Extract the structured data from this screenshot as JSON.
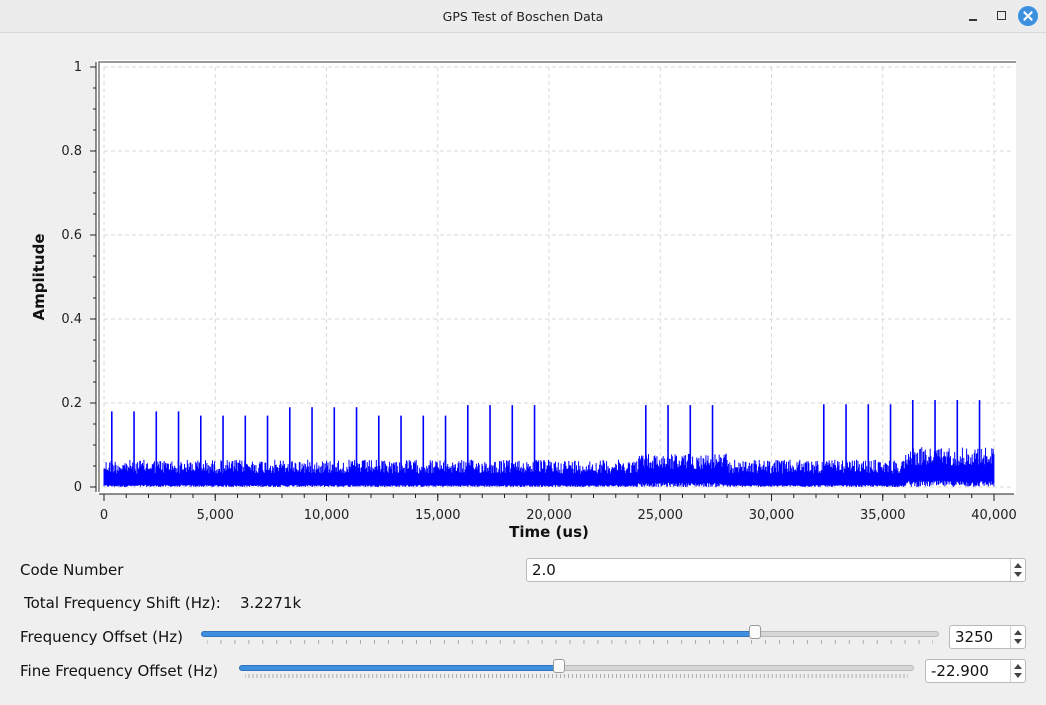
{
  "window": {
    "title": "GPS Test of Boschen Data"
  },
  "chart_data": {
    "type": "line",
    "xlabel": "Time (us)",
    "ylabel": "Amplitude",
    "xlim": [
      0,
      40000
    ],
    "ylim": [
      0,
      1
    ],
    "x_ticks": [
      0,
      5000,
      10000,
      15000,
      20000,
      25000,
      30000,
      35000,
      40000
    ],
    "x_tick_labels": [
      "0",
      "5,000",
      "10,000",
      "15,000",
      "20,000",
      "25,000",
      "30,000",
      "35,000",
      "40,000"
    ],
    "y_ticks": [
      0,
      0.2,
      0.4,
      0.6,
      0.8,
      1
    ],
    "y_tick_labels": [
      "0",
      "0.2",
      "0.4",
      "0.6",
      "0.8",
      "1"
    ],
    "grid": true,
    "line_color": "#0000ff",
    "noise_floor_segments": [
      {
        "x_start": 0,
        "x_end": 24000,
        "low": 0.005,
        "high": 0.065
      },
      {
        "x_start": 24000,
        "x_end": 28000,
        "low": 0.01,
        "high": 0.08
      },
      {
        "x_start": 28000,
        "x_end": 36000,
        "low": 0.005,
        "high": 0.065
      },
      {
        "x_start": 36000,
        "x_end": 40000,
        "low": 0.015,
        "high": 0.095
      }
    ],
    "peaks": {
      "x": [
        350,
        1350,
        2350,
        3350,
        4350,
        5350,
        6350,
        7350,
        8350,
        9350,
        10350,
        11350,
        12350,
        13350,
        14350,
        15350,
        16350,
        17350,
        18350,
        19350,
        24350,
        25350,
        26350,
        27350,
        32350,
        33350,
        34350,
        35350,
        36350,
        37350,
        38350,
        39350
      ],
      "y": [
        0.18,
        0.18,
        0.18,
        0.18,
        0.17,
        0.17,
        0.17,
        0.17,
        0.19,
        0.19,
        0.19,
        0.19,
        0.17,
        0.17,
        0.17,
        0.17,
        0.195,
        0.195,
        0.195,
        0.195,
        0.195,
        0.195,
        0.195,
        0.195,
        0.197,
        0.197,
        0.197,
        0.197,
        0.207,
        0.207,
        0.207,
        0.207
      ]
    }
  },
  "controls": {
    "code_number": {
      "label": "Code Number",
      "value": "2.0"
    },
    "total_shift": {
      "label": "Total Frequency Shift (Hz):",
      "value": "3.2271k"
    },
    "freq_offset": {
      "label": "Frequency Offset (Hz)",
      "value": "3250",
      "slider_fraction": 0.755
    },
    "fine_freq_offset": {
      "label": "Fine Frequency Offset (Hz)",
      "value": "-22.900",
      "slider_fraction": 0.474
    }
  }
}
